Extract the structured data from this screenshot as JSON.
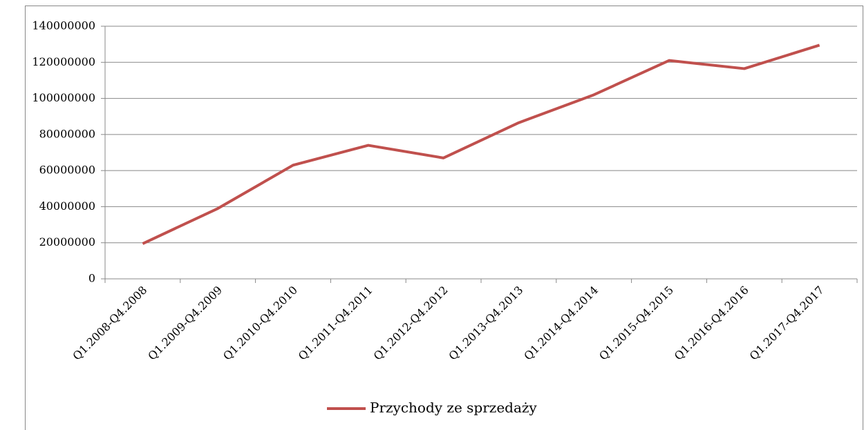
{
  "chart_data": {
    "type": "line",
    "categories": [
      "Q1.2008-Q4.2008",
      "Q1.2009-Q4.2009",
      "Q1.2010-Q4.2010",
      "Q1.2011-Q4.2011",
      "Q1.2012-Q4.2012",
      "Q1.2013-Q4.2013",
      "Q1.2014-Q4.2014",
      "Q1.2015-Q4.2015",
      "Q1.2016-Q4.2016",
      "Q1.2017-Q4.2017"
    ],
    "series": [
      {
        "name": "Przychody ze sprzedaży",
        "color": "#c0504d",
        "values": [
          19500000,
          39000000,
          63000000,
          74000000,
          67000000,
          86500000,
          102000000,
          121000000,
          116500000,
          129500000
        ]
      }
    ],
    "ylim": [
      0,
      140000000
    ],
    "yticks": [
      0,
      20000000,
      40000000,
      60000000,
      80000000,
      100000000,
      120000000,
      140000000
    ],
    "grid": true,
    "legend": "bottom"
  }
}
